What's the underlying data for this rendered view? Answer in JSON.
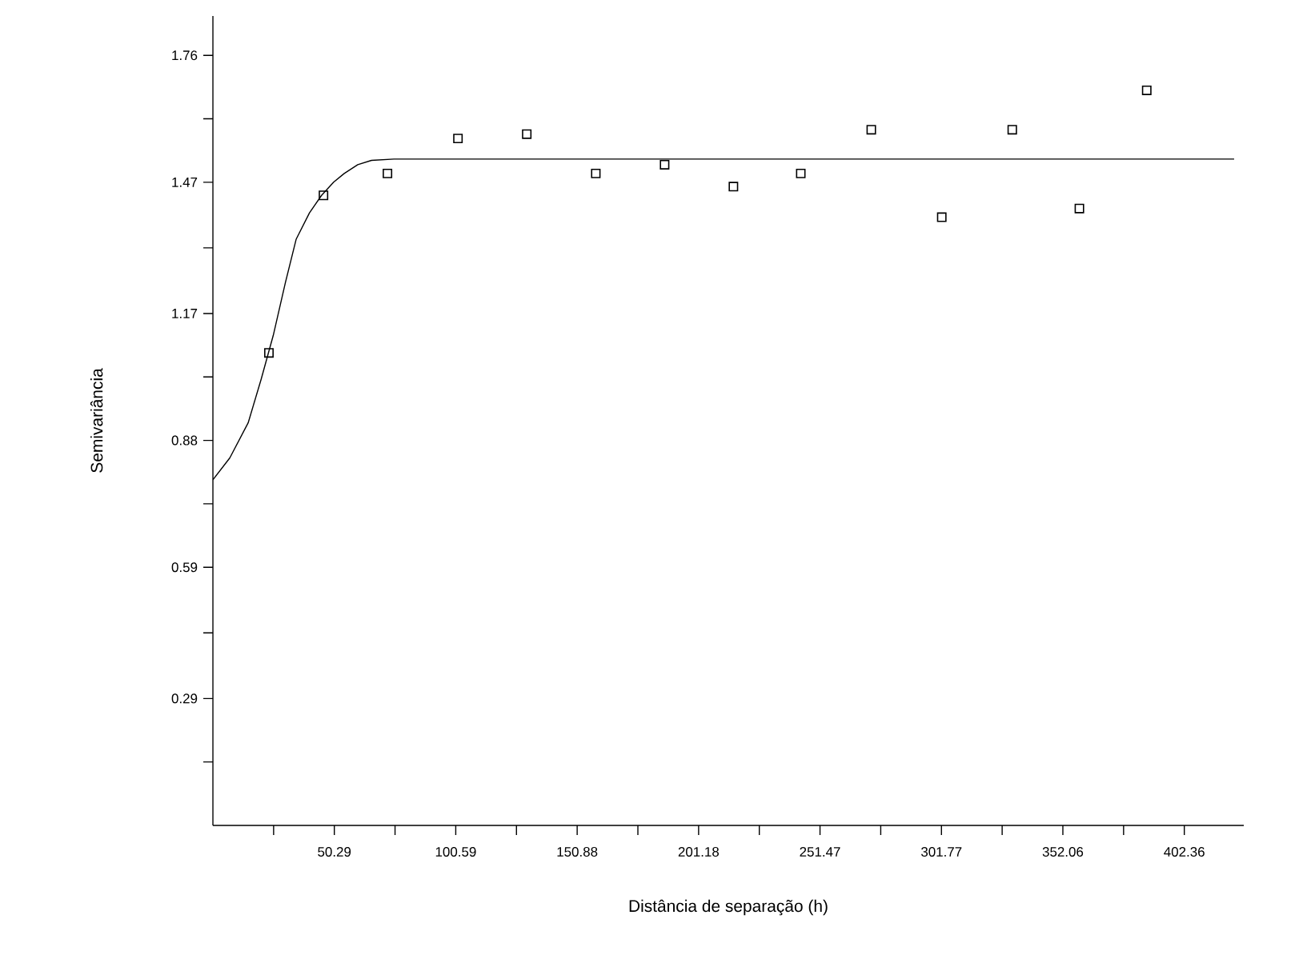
{
  "chart_data": {
    "type": "scatter",
    "xlabel": "Distância de separação (h)",
    "ylabel": "Semivariância",
    "xlim": [
      0,
      427
    ],
    "ylim": [
      0,
      1.85
    ],
    "xticks": [
      {
        "value": 25.145,
        "label": null
      },
      50.29,
      {
        "value": 75.44,
        "label": null
      },
      100.59,
      {
        "value": 125.735,
        "label": null
      },
      150.88,
      {
        "value": 176.03,
        "label": null
      },
      201.18,
      {
        "value": 226.325,
        "label": null
      },
      251.47,
      {
        "value": 276.62,
        "label": null
      },
      301.77,
      {
        "value": 326.915,
        "label": null
      },
      352.06,
      {
        "value": 377.21,
        "label": null
      },
      402.36
    ],
    "yticks": [
      {
        "value": 0.145,
        "label": null
      },
      0.29,
      {
        "value": 0.44,
        "label": null
      },
      0.59,
      {
        "value": 0.735,
        "label": null
      },
      0.88,
      {
        "value": 1.025,
        "label": null
      },
      1.17,
      {
        "value": 1.32,
        "label": null
      },
      1.47,
      {
        "value": 1.615,
        "label": null
      },
      1.76
    ],
    "series": [
      {
        "marker": "square",
        "color": "#000000",
        "x": [
          23.2,
          45.8,
          72.3,
          101.5,
          130.0,
          158.6,
          187.1,
          215.6,
          243.5,
          272.7,
          301.9,
          331.1,
          358.9,
          386.8
        ],
        "values": [
          1.08,
          1.44,
          1.49,
          1.57,
          1.58,
          1.49,
          1.51,
          1.46,
          1.49,
          1.59,
          1.39,
          1.59,
          1.41,
          1.68
        ]
      },
      {
        "type": "line",
        "marker": "none",
        "line_style": "solid",
        "color": "#000000",
        "x": [
          0,
          7,
          14.6,
          20,
          25,
          30,
          34.5,
          40,
          45,
          50,
          54.4,
          60,
          65.7,
          75,
          100,
          200,
          300,
          423
        ],
        "values": [
          0.79,
          0.84,
          0.92,
          1.02,
          1.12,
          1.24,
          1.34,
          1.4,
          1.44,
          1.47,
          1.49,
          1.51,
          1.52,
          1.523,
          1.523,
          1.523,
          1.523,
          1.523
        ]
      }
    ]
  }
}
